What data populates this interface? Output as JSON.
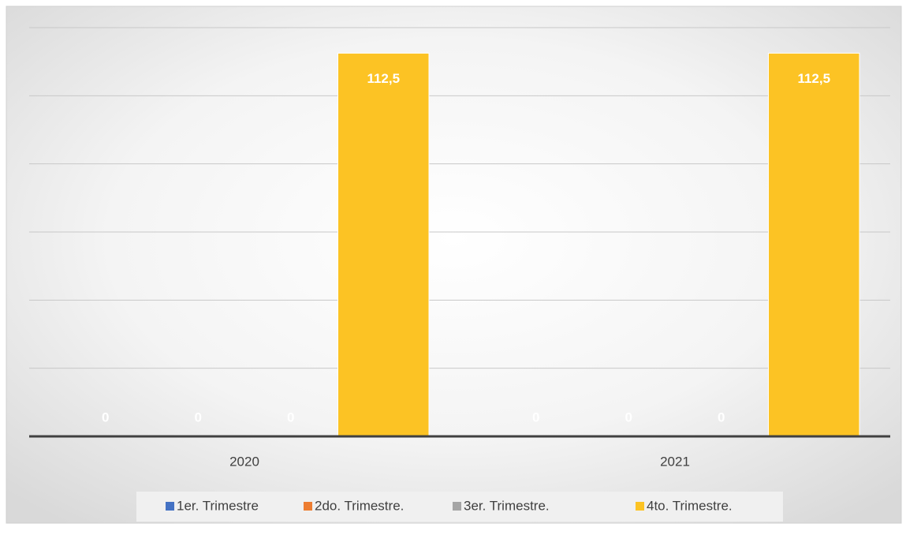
{
  "chart_data": {
    "type": "bar",
    "categories": [
      "2020",
      "2021"
    ],
    "series": [
      {
        "name": "1er. Trimestre",
        "color": "#4472c4",
        "values": [
          0,
          0
        ],
        "value_labels": [
          "0",
          "0"
        ]
      },
      {
        "name": "2do. Trimestre.",
        "color": "#ed7d31",
        "values": [
          0,
          0
        ],
        "value_labels": [
          "0",
          "0"
        ]
      },
      {
        "name": "3er. Trimestre.",
        "color": "#a5a5a5",
        "values": [
          0,
          0
        ],
        "value_labels": [
          "0",
          "0"
        ]
      },
      {
        "name": "4to. Trimestre.",
        "color": "#fcc324",
        "values": [
          112.5,
          112.5
        ],
        "value_labels": [
          "112,5",
          "112,5"
        ]
      }
    ],
    "ylim": [
      0,
      120
    ],
    "yticks": [
      0,
      20,
      40,
      60,
      80,
      100,
      120
    ],
    "grid": true,
    "legend": "bottom"
  }
}
